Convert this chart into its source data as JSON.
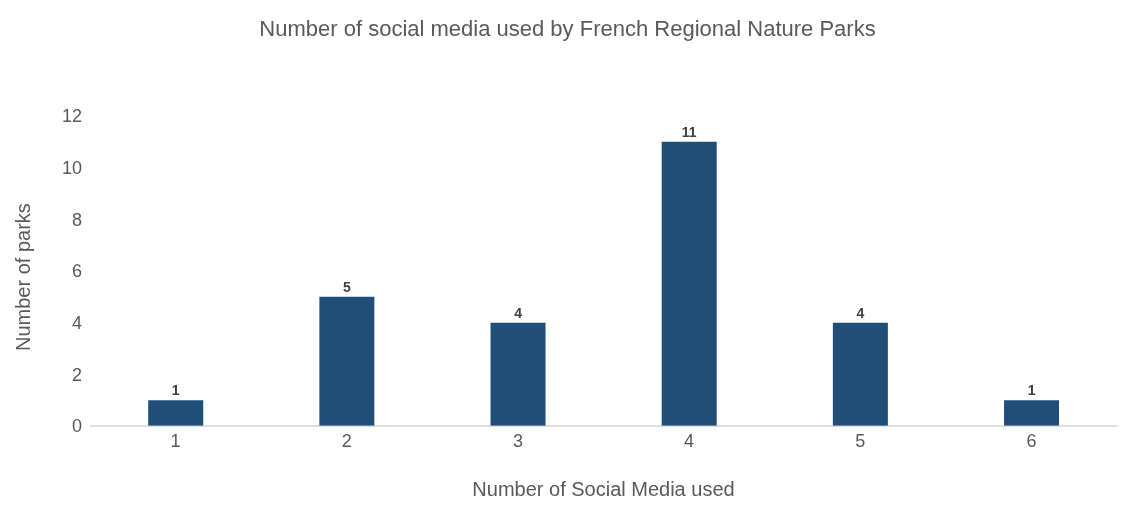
{
  "chart_data": {
    "type": "bar",
    "title": "Number of social media used by French Regional Nature Parks",
    "xlabel": "Number of Social Media used",
    "ylabel": "Number of parks",
    "categories": [
      "1",
      "2",
      "3",
      "4",
      "5",
      "6"
    ],
    "values": [
      1,
      5,
      4,
      11,
      4,
      1
    ],
    "color": "#1f4e79",
    "ylim": [
      0,
      12
    ],
    "yticks": [
      0,
      2,
      4,
      6,
      8,
      10,
      12
    ],
    "grid": false,
    "data_labels": true
  }
}
